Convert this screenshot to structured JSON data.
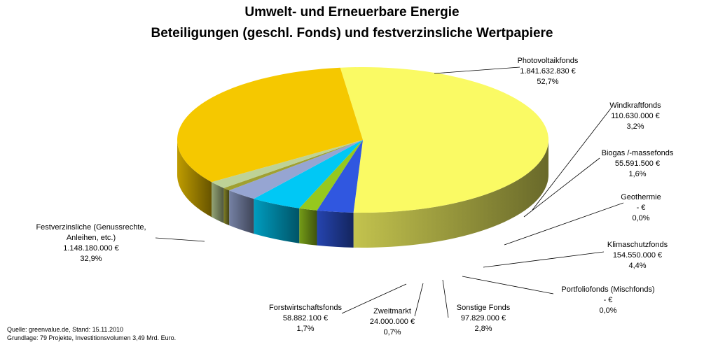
{
  "title": "Umwelt- und Erneuerbare Energie",
  "subtitle": "Beteiligungen (geschl. Fonds) und festverzinsliche Wertpapiere",
  "source_line1": "Quelle: greenvalue.de, Stand: 15.11.2010",
  "source_line2": "Grundlage: 79 Projekte, Investitionsvolumen 3,49 Mrd. Euro.",
  "chart_data": {
    "type": "pie",
    "title": "Umwelt- und Erneuerbare Energie",
    "subtitle": "Beteiligungen (geschl. Fonds) und festverzinsliche Wertpapiere",
    "slices": [
      {
        "name": "Photovoltaikfonds",
        "value": 1841632830,
        "amount_label": "1.841.632.830 €",
        "percent_label": "52,7%",
        "percent": 52.7,
        "color": "#fafa64"
      },
      {
        "name": "Windkraftfonds",
        "value": 110630000,
        "amount_label": "110.630.000 €",
        "percent_label": "3,2%",
        "percent": 3.2,
        "color": "#3057e0"
      },
      {
        "name": "Biogas /-massefonds",
        "value": 55591500,
        "amount_label": "55.591.500 €",
        "percent_label": "1,6%",
        "percent": 1.6,
        "color": "#96c81e"
      },
      {
        "name": "Geothermie",
        "value": 0,
        "amount_label": "-  €",
        "percent_label": "0,0%",
        "percent": 0.0,
        "color": "#ff8c00"
      },
      {
        "name": "Klimaschutzfonds",
        "value": 154550000,
        "amount_label": "154.550.000 €",
        "percent_label": "4,4%",
        "percent": 4.4,
        "color": "#00c8f5"
      },
      {
        "name": "Portfoliofonds (Mischfonds)",
        "value": 0,
        "amount_label": "-  €",
        "percent_label": "0,0%",
        "percent": 0.0,
        "color": "#b4b4b4"
      },
      {
        "name": "Sonstige Fonds",
        "value": 97829000,
        "amount_label": "97.829.000 €",
        "percent_label": "2,8%",
        "percent": 2.8,
        "color": "#96a5d2"
      },
      {
        "name": "Zweitmarkt",
        "value": 24000000,
        "amount_label": "24.000.000 €",
        "percent_label": "0,7%",
        "percent": 0.7,
        "color": "#a0a032"
      },
      {
        "name": "Forstwirtschaftsfonds",
        "value": 58882100,
        "amount_label": "58.882.100 €",
        "percent_label": "1,7%",
        "percent": 1.7,
        "color": "#bed296"
      },
      {
        "name": "Festverzinsliche (Genussrechte, Anleihen, etc.)",
        "name_line1": "Festverzinsliche (Genussrechte,",
        "name_line2": "Anleihen, etc.)",
        "value": 1148180000,
        "amount_label": "1.148.180.000 €",
        "percent_label": "32,9%",
        "percent": 32.9,
        "color": "#f5c800"
      }
    ]
  }
}
